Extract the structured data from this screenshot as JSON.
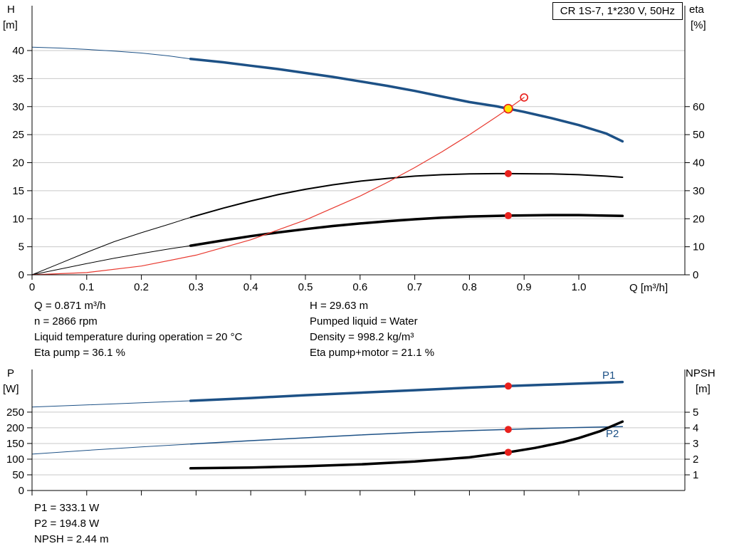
{
  "theme": {
    "blue": "#1d5186",
    "black": "#000000",
    "red": "#e8211d",
    "red_curve": "#e8392f",
    "yellow": "#ffe400",
    "grid": "#c9c9c9",
    "background": "#ffffff"
  },
  "info_top": {
    "left": [
      "Q = 0.871 m³/h",
      "n = 2866 rpm",
      "Liquid temperature during operation = 20 °C",
      "Eta pump = 36.1 %"
    ],
    "right": [
      "H = 29.63 m",
      "Pumped liquid = Water",
      "Density = 998.2 kg/m³",
      "Eta pump+motor = 21.1 %"
    ]
  },
  "info_bottom": [
    "P1 = 333.1 W",
    "P2 = 194.8 W",
    "NPSH = 2.44 m"
  ],
  "chart_data": [
    {
      "type": "line",
      "title": "CR 1S-7, 1*230 V, 50Hz",
      "x_axis": {
        "label": "Q [m³/h]",
        "min": 0,
        "max": 1.194,
        "ticks": [
          [
            0,
            "0"
          ],
          [
            0.1,
            "0.1"
          ],
          [
            0.2,
            "0.2"
          ],
          [
            0.3,
            "0.3"
          ],
          [
            0.4,
            "0.4"
          ],
          [
            0.5,
            "0.5"
          ],
          [
            0.6,
            "0.6"
          ],
          [
            0.7,
            "0.7"
          ],
          [
            0.8,
            "0.8"
          ],
          [
            0.9,
            "0.9"
          ],
          [
            1.0,
            "1.0"
          ]
        ],
        "show_tick_labels": true
      },
      "y_left": {
        "label": "H",
        "unit": "[m]",
        "min": 0,
        "max": 48,
        "ticks": [
          0,
          5,
          10,
          15,
          20,
          25,
          30,
          35,
          40
        ]
      },
      "y_right": {
        "label": "eta",
        "unit": "[%]",
        "min": 0,
        "max": 96,
        "ticks": [
          0,
          10,
          20,
          30,
          40,
          50,
          60
        ]
      },
      "grid": "horizontal",
      "series": [
        {
          "name": "qh-min-flow",
          "axis": "left",
          "color": "#1d5186",
          "width": 1,
          "points": [
            [
              0,
              40.6
            ],
            [
              0.05,
              40.45
            ],
            [
              0.1,
              40.2
            ],
            [
              0.15,
              39.9
            ],
            [
              0.2,
              39.55
            ],
            [
              0.25,
              39.05
            ],
            [
              0.29,
              38.5
            ]
          ]
        },
        {
          "name": "qh",
          "axis": "left",
          "color": "#1d5186",
          "width": 3.5,
          "points": [
            [
              0.29,
              38.5
            ],
            [
              0.35,
              37.9
            ],
            [
              0.4,
              37.3
            ],
            [
              0.45,
              36.7
            ],
            [
              0.5,
              36.0
            ],
            [
              0.55,
              35.3
            ],
            [
              0.6,
              34.5
            ],
            [
              0.65,
              33.7
            ],
            [
              0.7,
              32.8
            ],
            [
              0.75,
              31.8
            ],
            [
              0.8,
              30.8
            ],
            [
              0.85,
              30.05
            ],
            [
              0.871,
              29.63
            ],
            [
              0.9,
              29.05
            ],
            [
              0.95,
              27.95
            ],
            [
              1.0,
              26.7
            ],
            [
              1.05,
              25.2
            ],
            [
              1.08,
              23.8
            ]
          ]
        },
        {
          "name": "eta-pump-min-flow",
          "axis": "right",
          "color": "#000000",
          "width": 1,
          "points": [
            [
              0,
              0
            ],
            [
              0.05,
              4
            ],
            [
              0.1,
              8
            ],
            [
              0.15,
              11.8
            ],
            [
              0.2,
              15
            ],
            [
              0.25,
              18
            ],
            [
              0.29,
              20.5
            ]
          ]
        },
        {
          "name": "eta-pump",
          "axis": "right",
          "color": "#000000",
          "width": 2,
          "points": [
            [
              0.29,
              20.5
            ],
            [
              0.35,
              23.8
            ],
            [
              0.4,
              26.3
            ],
            [
              0.45,
              28.6
            ],
            [
              0.5,
              30.5
            ],
            [
              0.55,
              32.1
            ],
            [
              0.6,
              33.4
            ],
            [
              0.65,
              34.4
            ],
            [
              0.7,
              35.2
            ],
            [
              0.75,
              35.7
            ],
            [
              0.8,
              36.0
            ],
            [
              0.85,
              36.1
            ],
            [
              0.871,
              36.1
            ],
            [
              0.95,
              36.0
            ],
            [
              1.0,
              35.7
            ],
            [
              1.05,
              35.2
            ],
            [
              1.08,
              34.8
            ]
          ]
        },
        {
          "name": "eta-pump-motor-min-flow",
          "axis": "right",
          "color": "#000000",
          "width": 1,
          "points": [
            [
              0,
              0
            ],
            [
              0.05,
              2
            ],
            [
              0.1,
              4
            ],
            [
              0.15,
              5.9
            ],
            [
              0.2,
              7.6
            ],
            [
              0.25,
              9.2
            ],
            [
              0.29,
              10.4
            ]
          ]
        },
        {
          "name": "eta-pump-motor",
          "axis": "right",
          "color": "#000000",
          "width": 3.5,
          "points": [
            [
              0.29,
              10.4
            ],
            [
              0.35,
              12.3
            ],
            [
              0.4,
              13.8
            ],
            [
              0.45,
              15.1
            ],
            [
              0.5,
              16.3
            ],
            [
              0.55,
              17.4
            ],
            [
              0.6,
              18.3
            ],
            [
              0.65,
              19.1
            ],
            [
              0.7,
              19.8
            ],
            [
              0.75,
              20.4
            ],
            [
              0.8,
              20.8
            ],
            [
              0.871,
              21.1
            ],
            [
              0.95,
              21.3
            ],
            [
              1.0,
              21.3
            ],
            [
              1.05,
              21.1
            ],
            [
              1.08,
              21.0
            ]
          ]
        },
        {
          "name": "system-curve",
          "axis": "left",
          "color": "#e8392f",
          "width": 1.2,
          "points": [
            [
              0,
              0
            ],
            [
              0.1,
              0.39
            ],
            [
              0.2,
              1.56
            ],
            [
              0.3,
              3.51
            ],
            [
              0.4,
              6.25
            ],
            [
              0.5,
              9.76
            ],
            [
              0.6,
              14.05
            ],
            [
              0.65,
              16.5
            ],
            [
              0.7,
              19.13
            ],
            [
              0.75,
              21.96
            ],
            [
              0.8,
              24.99
            ],
            [
              0.85,
              28.22
            ],
            [
              0.871,
              29.63
            ],
            [
              0.9,
              31.63
            ]
          ]
        }
      ],
      "markers": [
        {
          "x": 0.9,
          "y": 31.63,
          "axis": "left",
          "style": "open"
        },
        {
          "x": 0.871,
          "y": 29.63,
          "axis": "left",
          "style": "duty"
        },
        {
          "x": 0.871,
          "y": 36.1,
          "axis": "right",
          "style": "dot"
        },
        {
          "x": 0.871,
          "y": 21.1,
          "axis": "right",
          "style": "dot"
        }
      ]
    },
    {
      "type": "line",
      "title": "",
      "x_axis": {
        "label": "",
        "min": 0,
        "max": 1.194,
        "ticks": [
          [
            0,
            "0"
          ],
          [
            0.1,
            "0.1"
          ],
          [
            0.2,
            "0.2"
          ],
          [
            0.3,
            "0.3"
          ],
          [
            0.4,
            "0.4"
          ],
          [
            0.5,
            "0.5"
          ],
          [
            0.6,
            "0.6"
          ],
          [
            0.7,
            "0.7"
          ],
          [
            0.8,
            "0.8"
          ],
          [
            0.9,
            "0.9"
          ],
          [
            1.0,
            "1.0"
          ]
        ],
        "show_tick_labels": false
      },
      "y_left": {
        "label": "P",
        "unit": "[W]",
        "min": 0,
        "max": 386,
        "ticks": [
          0,
          50,
          100,
          150,
          200,
          250
        ]
      },
      "y_right": {
        "label": "NPSH",
        "unit": "[m]",
        "min": 0,
        "max": 7.73,
        "ticks": [
          1,
          2,
          3,
          4,
          5
        ]
      },
      "grid": "horizontal",
      "series": [
        {
          "name": "p1-min-flow",
          "axis": "left",
          "color": "#1d5186",
          "width": 1,
          "points": [
            [
              0,
              266
            ],
            [
              0.1,
              273
            ],
            [
              0.2,
              280
            ],
            [
              0.29,
              286
            ]
          ]
        },
        {
          "name": "p1",
          "axis": "left",
          "color": "#1d5186",
          "width": 3.5,
          "points": [
            [
              0.29,
              286
            ],
            [
              0.4,
              295
            ],
            [
              0.5,
              304
            ],
            [
              0.6,
              312
            ],
            [
              0.7,
              320
            ],
            [
              0.8,
              328
            ],
            [
              0.871,
              333.1
            ],
            [
              0.95,
              338
            ],
            [
              1.0,
              341
            ],
            [
              1.08,
              346
            ]
          ]
        },
        {
          "name": "p2-min-flow",
          "axis": "left",
          "color": "#1d5186",
          "width": 1,
          "points": [
            [
              0,
              116
            ],
            [
              0.1,
              128
            ],
            [
              0.2,
              139
            ],
            [
              0.29,
              148
            ]
          ]
        },
        {
          "name": "p2",
          "axis": "left",
          "color": "#1d5186",
          "width": 1.5,
          "points": [
            [
              0.29,
              148
            ],
            [
              0.4,
              159
            ],
            [
              0.5,
              168
            ],
            [
              0.6,
              177
            ],
            [
              0.7,
              185
            ],
            [
              0.8,
              191
            ],
            [
              0.871,
              194.8
            ],
            [
              0.95,
              199
            ],
            [
              1.0,
              201
            ],
            [
              1.08,
              204
            ]
          ]
        },
        {
          "name": "npsh",
          "axis": "right",
          "color": "#000000",
          "width": 3.5,
          "points": [
            [
              0.29,
              1.42
            ],
            [
              0.4,
              1.47
            ],
            [
              0.5,
              1.55
            ],
            [
              0.6,
              1.67
            ],
            [
              0.7,
              1.85
            ],
            [
              0.8,
              2.12
            ],
            [
              0.871,
              2.44
            ],
            [
              0.92,
              2.72
            ],
            [
              0.97,
              3.08
            ],
            [
              1.0,
              3.35
            ],
            [
              1.04,
              3.8
            ],
            [
              1.08,
              4.4
            ]
          ]
        }
      ],
      "series_labels": [
        {
          "text": "P1",
          "color": "#1d5186"
        },
        {
          "text": "P2",
          "color": "#1d5186"
        }
      ],
      "markers": [
        {
          "x": 0.871,
          "y": 333.1,
          "axis": "left",
          "style": "dot"
        },
        {
          "x": 0.871,
          "y": 194.8,
          "axis": "left",
          "style": "dot"
        },
        {
          "x": 0.871,
          "y": 2.44,
          "axis": "right",
          "style": "dot"
        }
      ]
    }
  ]
}
